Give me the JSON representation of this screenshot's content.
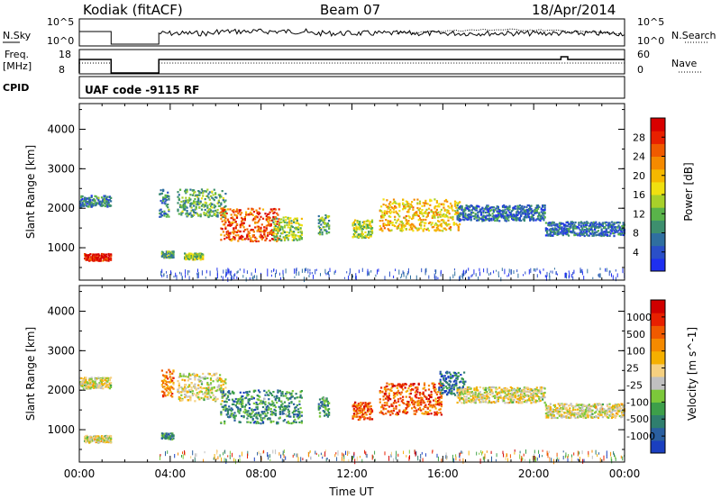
{
  "header": {
    "station": "Kodiak (fitACF)",
    "beam": "Beam 07",
    "date": "18/Apr/2014"
  },
  "strips": {
    "nsky_label": "N.Sky",
    "nsearch_label": "N.Search",
    "nsky_ticks": [
      "10^5",
      "10^0"
    ],
    "nsky_right_ticks": [
      "10^5",
      "10^0"
    ],
    "freq_label": "Freq.",
    "freq_unit": "[MHz]",
    "freq_ticks": [
      "18",
      "8"
    ],
    "nave_label": "Nave",
    "nave_ticks": [
      "60",
      "0"
    ],
    "cpid_label": "CPID",
    "cpid_text": "UAF code -9115 RF"
  },
  "chart_data": [
    {
      "type": "heatmap",
      "title": "",
      "xlabel": "Time UT",
      "ylabel": "Slant Range [km]",
      "xlim": [
        "00:00",
        "24:00"
      ],
      "ylim": [
        180,
        4650
      ],
      "x_ticks": [
        "00:00",
        "04:00",
        "08:00",
        "12:00",
        "16:00",
        "20:00",
        "00:00"
      ],
      "y_ticks": [
        1000,
        2000,
        3000,
        4000
      ],
      "colorbar": {
        "label": "Power [dB]",
        "ticks": [
          "4",
          "8",
          "12",
          "16",
          "20",
          "24",
          "28"
        ],
        "colors": [
          "#1e2ff0",
          "#2a4fc8",
          "#2f6fa0",
          "#3d8f6e",
          "#59b34a",
          "#a8d02a",
          "#f0e010",
          "#f5b800",
          "#f58a00",
          "#f05a00",
          "#e82000",
          "#d80000"
        ]
      },
      "echo_segments": [
        {
          "t0": 0.0,
          "t1": 1.4,
          "r": 2200,
          "w": 140,
          "level": 0.25
        },
        {
          "t0": 0.2,
          "t1": 1.4,
          "r": 780,
          "w": 90,
          "level": 0.9
        },
        {
          "t0": 3.5,
          "t1": 3.9,
          "r": 2150,
          "w": 350,
          "level": 0.25
        },
        {
          "t0": 3.6,
          "t1": 4.1,
          "r": 850,
          "w": 80,
          "level": 0.35
        },
        {
          "t0": 4.3,
          "t1": 6.4,
          "r": 2150,
          "w": 350,
          "level": 0.35
        },
        {
          "t0": 4.6,
          "t1": 5.4,
          "r": 800,
          "w": 80,
          "level": 0.45
        },
        {
          "t0": 6.2,
          "t1": 8.8,
          "r": 1600,
          "w": 420,
          "level": 0.8
        },
        {
          "t0": 8.5,
          "t1": 9.8,
          "r": 1500,
          "w": 300,
          "level": 0.45
        },
        {
          "t0": 10.5,
          "t1": 11.0,
          "r": 1600,
          "w": 250,
          "level": 0.35
        },
        {
          "t0": 12.0,
          "t1": 12.9,
          "r": 1500,
          "w": 230,
          "level": 0.45
        },
        {
          "t0": 13.2,
          "t1": 16.8,
          "r": 1850,
          "w": 400,
          "level": 0.6
        },
        {
          "t0": 16.6,
          "t1": 20.5,
          "r": 1900,
          "w": 200,
          "level": 0.2
        },
        {
          "t0": 20.5,
          "t1": 24.0,
          "r": 1500,
          "w": 180,
          "level": 0.2
        }
      ]
    },
    {
      "type": "heatmap",
      "title": "",
      "xlabel": "Time UT",
      "ylabel": "Slant Range [km]",
      "xlim": [
        "00:00",
        "24:00"
      ],
      "ylim": [
        180,
        4650
      ],
      "x_ticks": [
        "00:00",
        "04:00",
        "08:00",
        "12:00",
        "16:00",
        "20:00",
        "00:00"
      ],
      "y_ticks": [
        1000,
        2000,
        3000,
        4000
      ],
      "colorbar": {
        "label": "Velocity [m s^-1]",
        "ticks": [
          "1000",
          "500",
          "100",
          "25",
          "-25",
          "-100",
          "-500",
          "-1000"
        ],
        "colors": [
          "#1a3fc0",
          "#2a5fa0",
          "#2f7f6e",
          "#3d9f4a",
          "#7cc83a",
          "#c0c0c0",
          "#f5d080",
          "#f5b000",
          "#f58a00",
          "#f05a00",
          "#e82000",
          "#d00000"
        ]
      },
      "echo_segments": [
        {
          "t0": 0.0,
          "t1": 1.4,
          "r": 2200,
          "w": 140,
          "level": 0.5
        },
        {
          "t0": 0.2,
          "t1": 1.4,
          "r": 780,
          "w": 90,
          "level": 0.5
        },
        {
          "t0": 3.6,
          "t1": 4.1,
          "r": 2200,
          "w": 350,
          "level": 0.7
        },
        {
          "t0": 3.6,
          "t1": 4.1,
          "r": 850,
          "w": 80,
          "level": 0.25
        },
        {
          "t0": 4.3,
          "t1": 6.4,
          "r": 2100,
          "w": 350,
          "level": 0.5
        },
        {
          "t0": 6.2,
          "t1": 9.8,
          "r": 1600,
          "w": 420,
          "level": 0.25
        },
        {
          "t0": 10.5,
          "t1": 11.0,
          "r": 1600,
          "w": 250,
          "level": 0.25
        },
        {
          "t0": 12.0,
          "t1": 12.9,
          "r": 1500,
          "w": 230,
          "level": 0.8
        },
        {
          "t0": 13.2,
          "t1": 16.0,
          "r": 1800,
          "w": 400,
          "level": 0.8
        },
        {
          "t0": 15.8,
          "t1": 17.0,
          "r": 2200,
          "w": 300,
          "level": 0.15
        },
        {
          "t0": 16.6,
          "t1": 20.5,
          "r": 1900,
          "w": 200,
          "level": 0.5
        },
        {
          "t0": 20.5,
          "t1": 24.0,
          "r": 1500,
          "w": 180,
          "level": 0.5
        }
      ]
    }
  ]
}
